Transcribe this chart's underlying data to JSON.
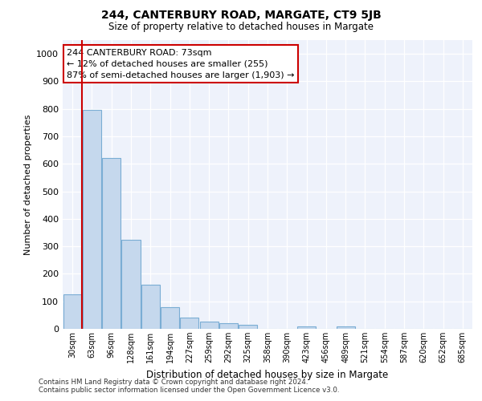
{
  "title": "244, CANTERBURY ROAD, MARGATE, CT9 5JB",
  "subtitle": "Size of property relative to detached houses in Margate",
  "xlabel": "Distribution of detached houses by size in Margate",
  "ylabel": "Number of detached properties",
  "bar_color": "#c5d8ed",
  "bar_edge_color": "#7aadd4",
  "categories": [
    "30sqm",
    "63sqm",
    "96sqm",
    "128sqm",
    "161sqm",
    "194sqm",
    "227sqm",
    "259sqm",
    "292sqm",
    "325sqm",
    "358sqm",
    "390sqm",
    "423sqm",
    "456sqm",
    "489sqm",
    "521sqm",
    "554sqm",
    "587sqm",
    "620sqm",
    "652sqm",
    "685sqm"
  ],
  "values": [
    125,
    795,
    620,
    325,
    160,
    78,
    40,
    27,
    20,
    16,
    0,
    0,
    10,
    0,
    10,
    0,
    0,
    0,
    0,
    0,
    0
  ],
  "ylim": [
    0,
    1050
  ],
  "yticks": [
    0,
    100,
    200,
    300,
    400,
    500,
    600,
    700,
    800,
    900,
    1000
  ],
  "vline_x": 0.5,
  "vline_color": "#cc0000",
  "annotation_text": "244 CANTERBURY ROAD: 73sqm\n← 12% of detached houses are smaller (255)\n87% of semi-detached houses are larger (1,903) →",
  "annotation_box_color": "#ffffff",
  "annotation_box_edge": "#cc0000",
  "footnote1": "Contains HM Land Registry data © Crown copyright and database right 2024.",
  "footnote2": "Contains public sector information licensed under the Open Government Licence v3.0.",
  "background_color": "#eef2fb"
}
